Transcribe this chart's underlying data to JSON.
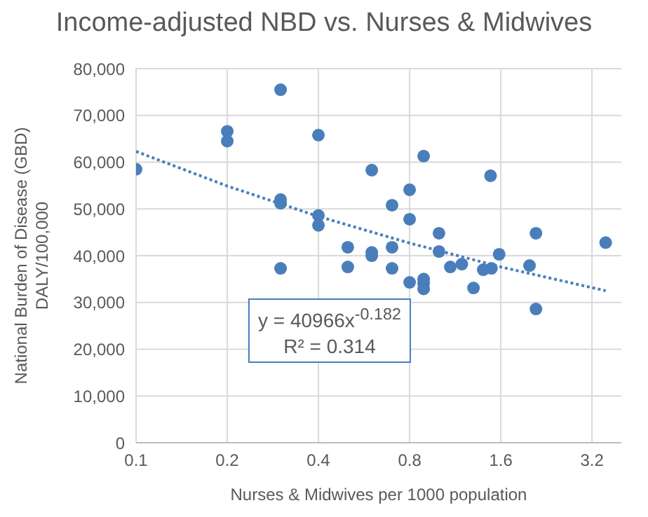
{
  "chart_data": {
    "type": "scatter",
    "title": "Income-adjusted NBD vs. Nurses & Midwives",
    "xlabel": "Nurses & Midwives per  1000 population",
    "ylabel": "National Burden of Disease (GBD)\nDALY/100,000",
    "log": "x",
    "xlim": [
      0.1,
      4
    ],
    "xticks": [
      0.1,
      0.2,
      0.4,
      0.8,
      1.6,
      3.2
    ],
    "ylim": [
      0,
      80000
    ],
    "yticks": [
      {
        "value": 0,
        "label": "0"
      },
      {
        "value": 10000,
        "label": "10,000"
      },
      {
        "value": 20000,
        "label": "20,000"
      },
      {
        "value": 30000,
        "label": "30,000"
      },
      {
        "value": 40000,
        "label": "40,000"
      },
      {
        "value": 50000,
        "label": "50,000"
      },
      {
        "value": 60000,
        "label": "60,000"
      },
      {
        "value": 70000,
        "label": "70,000"
      },
      {
        "value": 80000,
        "label": "80,000"
      }
    ],
    "grid": true,
    "legend": false,
    "marker": "circle",
    "series": [
      {
        "color": "#4a7ebb",
        "x": [
          0.1,
          0.2,
          0.2,
          0.3,
          0.3,
          0.3,
          0.3,
          0.4,
          0.4,
          0.4,
          0.5,
          0.5,
          0.6,
          0.6,
          0.6,
          0.7,
          0.7,
          0.7,
          0.8,
          0.8,
          0.8,
          0.89,
          0.89,
          0.89,
          0.89,
          1.0,
          1.0,
          1.09,
          1.19,
          1.3,
          1.4,
          1.48,
          1.49,
          1.58,
          1.99,
          2.09,
          2.09,
          3.55
        ],
        "values": [
          58500,
          66600,
          64500,
          75500,
          52000,
          51200,
          37300,
          65800,
          48600,
          46500,
          41800,
          37600,
          58300,
          40700,
          40000,
          50800,
          41800,
          37300,
          54100,
          47800,
          34300,
          61300,
          35000,
          34100,
          32900,
          44800,
          40900,
          37600,
          38200,
          33100,
          37000,
          57100,
          37300,
          40300,
          37900,
          44800,
          28600,
          42800
        ]
      },
      {
        "type": "line",
        "color": "#4a7ebb",
        "line_style": "dotted",
        "marker": "none",
        "x": [
          0.1,
          0.2,
          0.4,
          0.8,
          1.6,
          3.55
        ],
        "values": [
          62300,
          54900,
          48400,
          42700,
          37600,
          32500
        ]
      }
    ],
    "annotations": [
      "y = 40966x$^{-0.182}$",
      "R² = 0.314"
    ]
  }
}
